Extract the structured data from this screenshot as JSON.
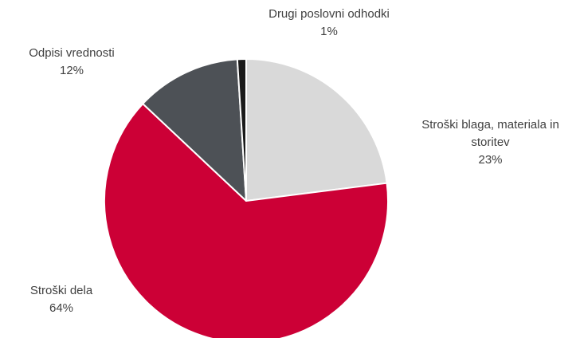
{
  "chart_data": {
    "type": "pie",
    "categories": [
      "Stroški blaga, materiala in storitev",
      "Stroški dela",
      "Odpisi vrednosti",
      "Drugi poslovni odhodki"
    ],
    "values": [
      23,
      64,
      12,
      1
    ],
    "value_labels": [
      "23%",
      "64%",
      "12%",
      "1%"
    ],
    "colors": [
      "#d9d9d9",
      "#cc0036",
      "#4d5156",
      "#1a1a1a"
    ]
  }
}
